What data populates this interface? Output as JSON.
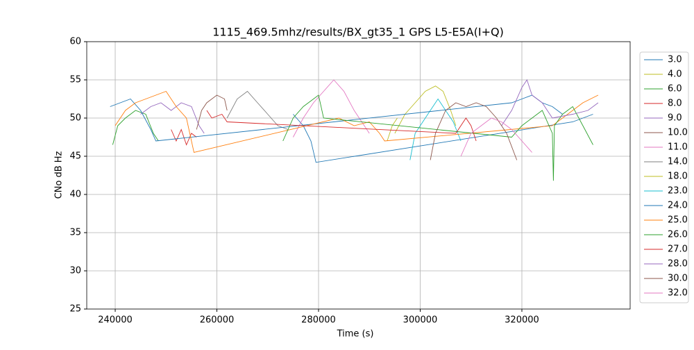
{
  "chart_data": {
    "type": "line",
    "title": "1115_469.5mhz/results/BX_gt35_1 GPS L5-E5A(I+Q)",
    "x_label": "Time (s)",
    "y_label": "CNo dB Hz",
    "xlim": [
      234400,
      341300
    ],
    "ylim": [
      25,
      60
    ],
    "xticks": [
      240000,
      260000,
      280000,
      300000,
      320000
    ],
    "yticks": [
      25,
      30,
      35,
      40,
      45,
      50,
      55,
      60
    ],
    "grid": true,
    "legend": "right",
    "series": [
      {
        "name": "3.0",
        "color": "#1f77b4",
        "x": [
          275000,
          277000,
          278500,
          279500,
          330000,
          332000,
          334000
        ],
        "values": [
          50.5,
          49,
          47,
          44.2,
          49.5,
          50,
          50.5
        ]
      },
      {
        "name": "4.0",
        "color": "#bcbd22",
        "x": [
          295000,
          297000,
          299000,
          301000,
          303000,
          304500,
          306000,
          307000
        ],
        "values": [
          48,
          50.5,
          52,
          53.5,
          54.2,
          53.5,
          51,
          49
        ]
      },
      {
        "name": "6.0",
        "color": "#2ca02c",
        "x": [
          239500,
          240500,
          242000,
          244000,
          246000,
          247500,
          248500
        ],
        "values": [
          46.5,
          49,
          50,
          51,
          50.5,
          48,
          47
        ]
      },
      {
        "name": "8.0",
        "color": "#d62728",
        "x": [
          251000,
          252000,
          253000,
          254000,
          255000,
          256000
        ],
        "values": [
          48.5,
          47,
          48.5,
          46.5,
          48,
          47.5
        ]
      },
      {
        "name": "9.0",
        "color": "#9467bd",
        "x": [
          245000,
          247000,
          249000,
          251000,
          253000,
          255000,
          256500,
          257500
        ],
        "values": [
          50.5,
          51.5,
          52,
          51,
          52,
          51.5,
          49,
          48
        ]
      },
      {
        "name": "10.0",
        "color": "#8c564b",
        "x": [
          256000,
          257000,
          258000,
          260000,
          261500,
          262000
        ],
        "values": [
          48.5,
          51,
          52,
          53,
          52.5,
          51
        ]
      },
      {
        "name": "11.0",
        "color": "#e377c2",
        "x": [
          275000,
          277000,
          279000,
          281000,
          283000,
          285000,
          287000,
          289000,
          290000
        ],
        "values": [
          47.5,
          50,
          52,
          53.5,
          55,
          53.5,
          51,
          49,
          48
        ]
      },
      {
        "name": "14.0",
        "color": "#7f7f7f",
        "x": [
          262000,
          264000,
          266000,
          268000,
          270000,
          272000,
          274000
        ],
        "values": [
          50,
          52.5,
          53.5,
          52,
          50.5,
          49,
          48.5
        ]
      },
      {
        "name": "18.0",
        "color": "#bcbd22",
        "x": [
          293500,
          294500,
          295500
        ],
        "values": [
          47,
          49,
          50
        ]
      },
      {
        "name": "23.0",
        "color": "#17becf",
        "x": [
          298000,
          299000,
          300500,
          302000,
          303500,
          305000,
          306500,
          308000
        ],
        "values": [
          44.5,
          48,
          49.5,
          51,
          52.5,
          51,
          49.5,
          47
        ]
      },
      {
        "name": "24.0",
        "color": "#1f77b4",
        "x": [
          239000,
          241000,
          243000,
          245000,
          247000,
          248000,
          318000,
          320000,
          322000,
          324000,
          326000,
          328000
        ],
        "values": [
          51.5,
          52,
          52.5,
          51,
          48.5,
          47,
          52,
          52.5,
          53,
          52,
          51.5,
          50.5
        ]
      },
      {
        "name": "25.0",
        "color": "#ff7f0e",
        "x": [
          240000,
          242000,
          244000,
          246000,
          248000,
          250000,
          252000,
          254000,
          255500,
          284000,
          287000,
          290000,
          292000,
          293000,
          326000,
          329000,
          332000,
          335000
        ],
        "values": [
          49,
          51,
          52,
          52.5,
          53,
          53.5,
          51.5,
          50,
          45.5,
          50,
          49,
          49.5,
          48,
          47,
          49,
          50.5,
          52,
          53
        ]
      },
      {
        "name": "26.0",
        "color": "#2ca02c",
        "x": [
          273000,
          275000,
          277000,
          279000,
          280000,
          281000,
          318000,
          320000,
          322000,
          324000,
          326000,
          326200,
          326400,
          328000,
          330000,
          332000,
          334000
        ],
        "values": [
          47,
          50,
          51.5,
          52.5,
          53,
          50,
          47.5,
          49,
          50,
          51,
          48,
          41.8,
          49,
          50.5,
          51.5,
          49,
          46.5
        ]
      },
      {
        "name": "27.0",
        "color": "#d62728",
        "x": [
          258000,
          259000,
          261000,
          262000,
          307000,
          309000,
          310000,
          311000
        ],
        "values": [
          51,
          50,
          50.5,
          49.5,
          48,
          50,
          49,
          47
        ]
      },
      {
        "name": "28.0",
        "color": "#9467bd",
        "x": [
          316000,
          318000,
          320000,
          321000,
          322000,
          324000,
          326000,
          330000,
          333000,
          335000
        ],
        "values": [
          49,
          51,
          54,
          55,
          53,
          52,
          50,
          50.5,
          51,
          52
        ]
      },
      {
        "name": "30.0",
        "color": "#8c564b",
        "x": [
          302000,
          303000,
          305000,
          307000,
          309000,
          311000,
          313000,
          315000,
          317000,
          319000
        ],
        "values": [
          44.5,
          48,
          51,
          52,
          51.5,
          52,
          51.5,
          50,
          48,
          44.5
        ]
      },
      {
        "name": "32.0",
        "color": "#e377c2",
        "x": [
          308000,
          310000,
          312000,
          314000,
          316000,
          318000,
          320000,
          322000
        ],
        "values": [
          45,
          48,
          49,
          50,
          49.5,
          48.5,
          47,
          45.5
        ]
      }
    ]
  }
}
